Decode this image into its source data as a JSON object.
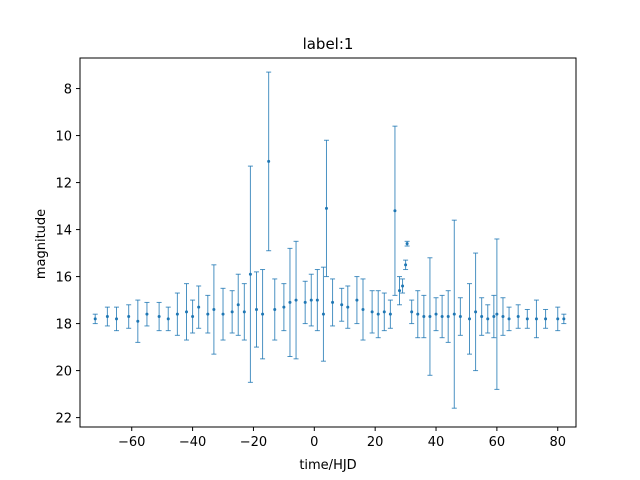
{
  "chart_data": {
    "type": "scatter",
    "title": "label:1",
    "xlabel": "time/HJD",
    "ylabel": "magnitude",
    "xlim": [
      -77,
      86
    ],
    "ylim": [
      22.4,
      6.7
    ],
    "y_inverted": true,
    "grid": false,
    "x_ticks": [
      -60,
      -40,
      -20,
      0,
      20,
      40,
      60,
      80
    ],
    "y_ticks": [
      8,
      10,
      12,
      14,
      16,
      18,
      20,
      22
    ],
    "color": "#1f77b4",
    "marker": "point with vertical error bars",
    "series": [
      {
        "points": [
          {
            "x": -72,
            "y": 17.8,
            "err": 0.2
          },
          {
            "x": -68,
            "y": 17.7,
            "err": 0.4
          },
          {
            "x": -65,
            "y": 17.8,
            "err": 0.5
          },
          {
            "x": -61,
            "y": 17.7,
            "err": 0.5
          },
          {
            "x": -58,
            "y": 17.9,
            "err": 0.9
          },
          {
            "x": -55,
            "y": 17.6,
            "err": 0.5
          },
          {
            "x": -51,
            "y": 17.7,
            "err": 0.6
          },
          {
            "x": -48,
            "y": 17.8,
            "err": 0.5
          },
          {
            "x": -45,
            "y": 17.6,
            "err": 0.9
          },
          {
            "x": -42,
            "y": 17.5,
            "err": 1.2
          },
          {
            "x": -40,
            "y": 17.7,
            "err": 0.7
          },
          {
            "x": -38,
            "y": 17.3,
            "err": 0.9
          },
          {
            "x": -35,
            "y": 17.6,
            "err": 0.8
          },
          {
            "x": -33,
            "y": 17.4,
            "err": 1.9
          },
          {
            "x": -30,
            "y": 17.6,
            "err": 1.1
          },
          {
            "x": -27,
            "y": 17.5,
            "err": 0.9
          },
          {
            "x": -25,
            "y": 17.2,
            "err": 1.3
          },
          {
            "x": -23,
            "y": 17.5,
            "err": 1.2
          },
          {
            "x": -21,
            "y": 15.9,
            "err": 4.6
          },
          {
            "x": -19,
            "y": 17.4,
            "err": 1.6
          },
          {
            "x": -17,
            "y": 17.6,
            "err": 1.9
          },
          {
            "x": -15,
            "y": 11.1,
            "err": 3.8
          },
          {
            "x": -13,
            "y": 17.4,
            "err": 1.3
          },
          {
            "x": -10,
            "y": 17.3,
            "err": 1.0
          },
          {
            "x": -8,
            "y": 17.1,
            "err": 2.3
          },
          {
            "x": -6,
            "y": 17.0,
            "err": 2.5
          },
          {
            "x": -3,
            "y": 17.1,
            "err": 0.9
          },
          {
            "x": -1,
            "y": 17.0,
            "err": 1.1
          },
          {
            "x": 1,
            "y": 17.0,
            "err": 1.3
          },
          {
            "x": 3,
            "y": 17.6,
            "err": 2.0
          },
          {
            "x": 4,
            "y": 13.1,
            "err": 2.9
          },
          {
            "x": 6,
            "y": 17.1,
            "err": 1.0
          },
          {
            "x": 9,
            "y": 17.2,
            "err": 0.7
          },
          {
            "x": 11,
            "y": 17.3,
            "err": 0.9
          },
          {
            "x": 14,
            "y": 17.0,
            "err": 1.0
          },
          {
            "x": 16,
            "y": 17.4,
            "err": 1.3
          },
          {
            "x": 19,
            "y": 17.5,
            "err": 0.9
          },
          {
            "x": 21,
            "y": 17.6,
            "err": 1.0
          },
          {
            "x": 23,
            "y": 17.5,
            "err": 0.8
          },
          {
            "x": 25,
            "y": 17.6,
            "err": 0.6
          },
          {
            "x": 26.5,
            "y": 13.2,
            "err": 3.6
          },
          {
            "x": 28,
            "y": 16.6,
            "err": 0.6
          },
          {
            "x": 29,
            "y": 16.4,
            "err": 0.3
          },
          {
            "x": 30,
            "y": 15.5,
            "err": 0.2
          },
          {
            "x": 30.5,
            "y": 14.6,
            "err": 0.1
          },
          {
            "x": 32,
            "y": 17.5,
            "err": 0.5
          },
          {
            "x": 34,
            "y": 17.6,
            "err": 1.0
          },
          {
            "x": 36,
            "y": 17.7,
            "err": 0.9
          },
          {
            "x": 38,
            "y": 17.7,
            "err": 2.5
          },
          {
            "x": 40,
            "y": 17.6,
            "err": 0.7
          },
          {
            "x": 42,
            "y": 17.7,
            "err": 0.9
          },
          {
            "x": 44,
            "y": 17.7,
            "err": 1.1
          },
          {
            "x": 46,
            "y": 17.6,
            "err": 4.0
          },
          {
            "x": 48,
            "y": 17.7,
            "err": 0.8
          },
          {
            "x": 51,
            "y": 17.8,
            "err": 1.5
          },
          {
            "x": 53,
            "y": 17.5,
            "err": 2.5
          },
          {
            "x": 55,
            "y": 17.7,
            "err": 0.8
          },
          {
            "x": 57,
            "y": 17.8,
            "err": 0.6
          },
          {
            "x": 59,
            "y": 17.7,
            "err": 0.9
          },
          {
            "x": 60,
            "y": 17.6,
            "err": 3.2
          },
          {
            "x": 62,
            "y": 17.7,
            "err": 0.8
          },
          {
            "x": 64,
            "y": 17.8,
            "err": 0.5
          },
          {
            "x": 67,
            "y": 17.7,
            "err": 0.5
          },
          {
            "x": 70,
            "y": 17.8,
            "err": 0.4
          },
          {
            "x": 73,
            "y": 17.8,
            "err": 0.8
          },
          {
            "x": 76,
            "y": 17.8,
            "err": 0.4
          },
          {
            "x": 80,
            "y": 17.8,
            "err": 0.5
          },
          {
            "x": 82,
            "y": 17.8,
            "err": 0.2
          }
        ]
      }
    ]
  }
}
